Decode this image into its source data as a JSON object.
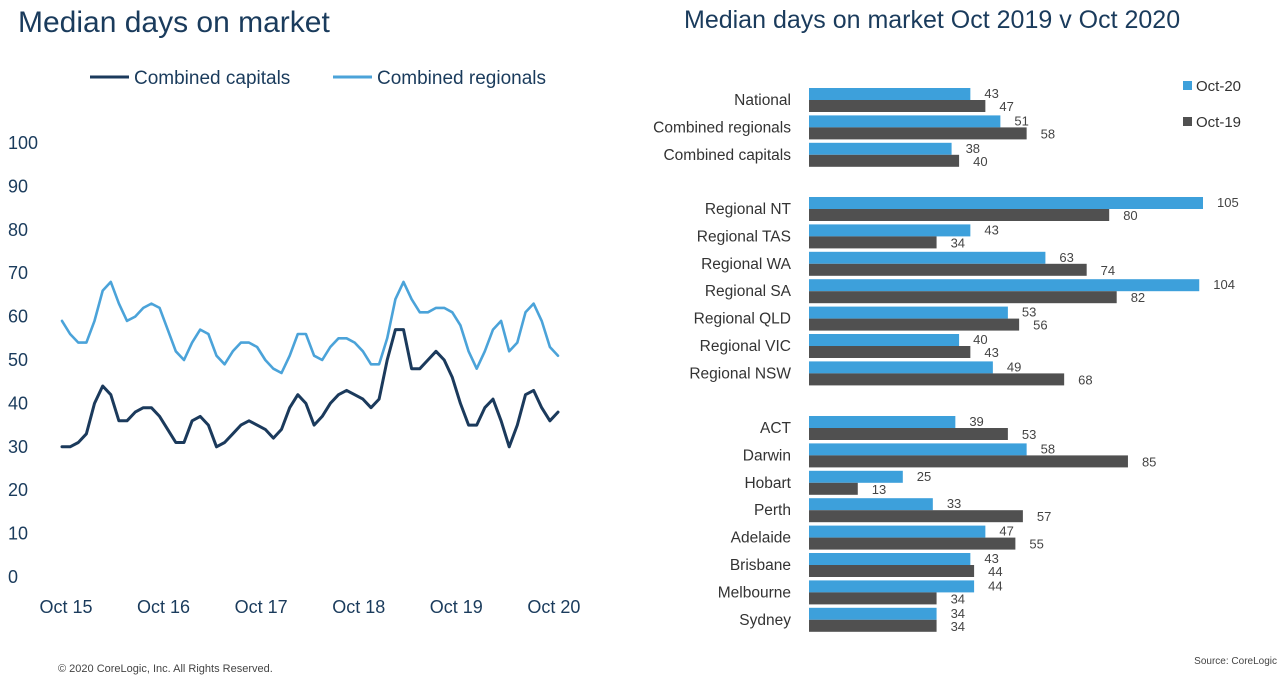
{
  "colors": {
    "title": "#1a3b5c",
    "capitals": "#1b3a5c",
    "regionals": "#4ba3d9",
    "oct20": "#3da0db",
    "oct19": "#505050",
    "axis_text": "#1a3b5c"
  },
  "footer": {
    "copyright": "© 2020 CoreLogic,  Inc. All Rights Reserved.",
    "source": "Source: CoreLogic"
  },
  "chart_data": [
    {
      "type": "line",
      "title": "Median days on market",
      "xlabel": "",
      "ylabel": "",
      "ylim": [
        0,
        100
      ],
      "yticks": [
        0,
        10,
        20,
        30,
        40,
        50,
        60,
        70,
        80,
        90,
        100
      ],
      "xtick_labels": [
        "Oct 15",
        "Oct 16",
        "Oct 17",
        "Oct 18",
        "Oct 19",
        "Oct 20"
      ],
      "grid": false,
      "legend": "top",
      "series": [
        {
          "name": "Combined capitals",
          "values": [
            30,
            30,
            31,
            33,
            40,
            44,
            42,
            36,
            36,
            38,
            39,
            39,
            37,
            34,
            31,
            31,
            36,
            37,
            35,
            30,
            31,
            33,
            35,
            36,
            35,
            34,
            32,
            34,
            39,
            42,
            40,
            35,
            37,
            40,
            42,
            43,
            42,
            41,
            39,
            41,
            50,
            57,
            57,
            48,
            48,
            50,
            52,
            50,
            46,
            40,
            35,
            35,
            39,
            41,
            36,
            30,
            35,
            42,
            43,
            39,
            36,
            38
          ]
        },
        {
          "name": "Combined regionals",
          "values": [
            59,
            56,
            54,
            54,
            59,
            66,
            68,
            63,
            59,
            60,
            62,
            63,
            62,
            57,
            52,
            50,
            54,
            57,
            56,
            51,
            49,
            52,
            54,
            54,
            53,
            50,
            48,
            47,
            51,
            56,
            56,
            51,
            50,
            53,
            55,
            55,
            54,
            52,
            49,
            49,
            55,
            64,
            68,
            64,
            61,
            61,
            62,
            62,
            61,
            58,
            52,
            48,
            52,
            57,
            59,
            52,
            54,
            61,
            63,
            59,
            53,
            51
          ]
        }
      ]
    },
    {
      "type": "bar",
      "orientation": "horizontal",
      "title": "Median days on market Oct 2019 v Oct 2020",
      "legend": "top-right",
      "groups": [
        [
          "National",
          "Combined regionals",
          "Combined capitals"
        ],
        [
          "Regional NT",
          "Regional TAS",
          "Regional WA",
          "Regional SA",
          "Regional QLD",
          "Regional VIC",
          "Regional NSW"
        ],
        [
          "ACT",
          "Darwin",
          "Hobart",
          "Perth",
          "Adelaide",
          "Brisbane",
          "Melbourne",
          "Sydney"
        ]
      ],
      "series": [
        {
          "name": "Oct-20",
          "values": [
            43,
            51,
            38,
            105,
            43,
            63,
            104,
            53,
            40,
            49,
            39,
            58,
            25,
            33,
            47,
            43,
            44,
            34
          ]
        },
        {
          "name": "Oct-19",
          "values": [
            47,
            58,
            40,
            80,
            34,
            74,
            82,
            56,
            43,
            68,
            53,
            85,
            13,
            57,
            55,
            44,
            34,
            34
          ]
        }
      ]
    }
  ]
}
